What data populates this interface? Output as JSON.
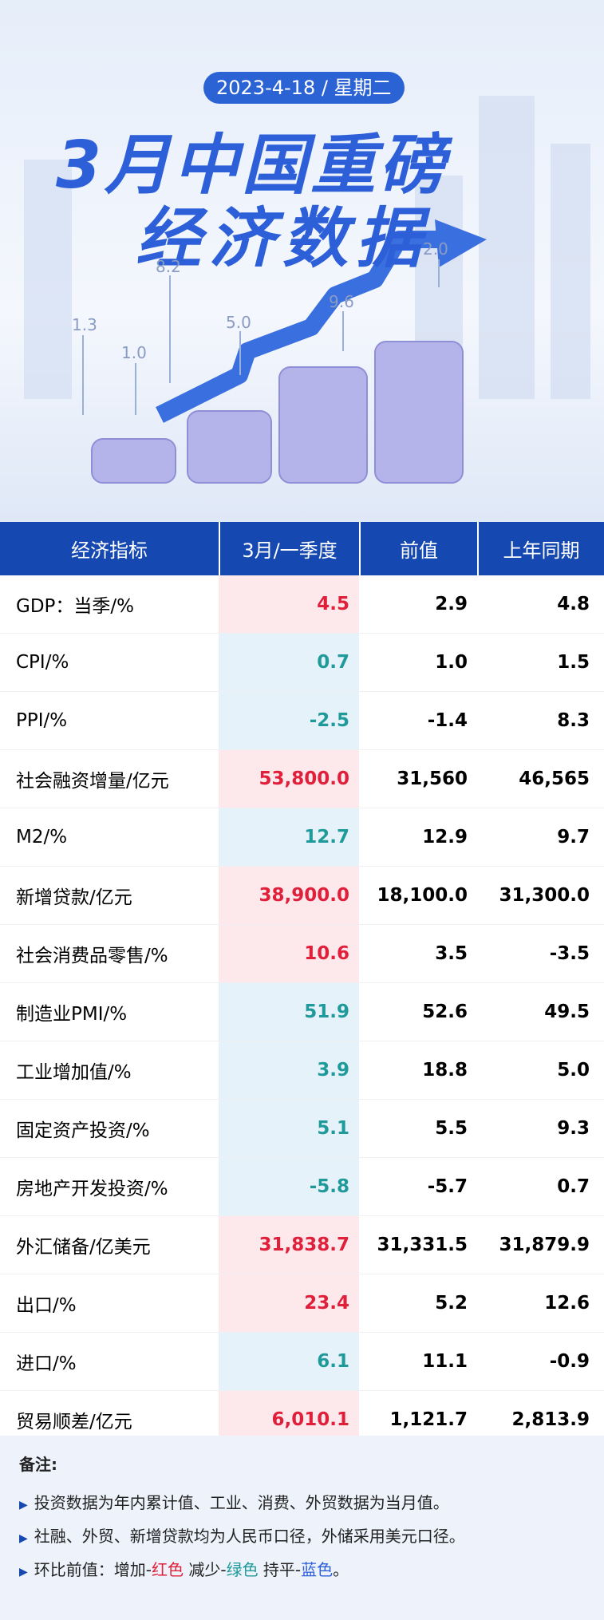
{
  "header": {
    "date": "2023-4-18 / 星期二",
    "title_line1": "3月中国重磅",
    "title_line2": "经济数据",
    "chart_labels": [
      "1.3",
      "1.0",
      "8.2",
      "5.0",
      "9.6",
      "2.0"
    ]
  },
  "table": {
    "columns": [
      "经济指标",
      "3月/一季度",
      "前值",
      "上年同期"
    ],
    "rows": [
      [
        "GDP：当季/%",
        "4.5",
        "2.9",
        "4.8"
      ],
      [
        "CPI/%",
        "0.7",
        "1.0",
        "1.5"
      ],
      [
        "PPI/%",
        "-2.5",
        "-1.4",
        "8.3"
      ],
      [
        "社会融资增量/亿元",
        "53,800.0",
        "31,560",
        "46,565"
      ],
      [
        "M2/%",
        "12.7",
        "12.9",
        "9.7"
      ],
      [
        "新增贷款/亿元",
        "38,900.0",
        "18,100.0",
        "31,300.0"
      ],
      [
        "社会消费品零售/%",
        "10.6",
        "3.5",
        "-3.5"
      ],
      [
        "制造业PMI/%",
        "51.9",
        "52.6",
        "49.5"
      ],
      [
        "工业增加值/%",
        "3.9",
        "18.8",
        "5.0"
      ],
      [
        "固定资产投资/%",
        "5.1",
        "5.5",
        "9.3"
      ],
      [
        "房地产开发投资/%",
        "-5.8",
        "-5.7",
        "0.7"
      ],
      [
        "外汇储备/亿美元",
        "31,838.7",
        "31,331.5",
        "31,879.9"
      ],
      [
        "出口/%",
        "23.4",
        "5.2",
        "12.6"
      ],
      [
        "进口/%",
        "6.1",
        "11.1",
        "-0.9"
      ],
      [
        "贸易顺差/亿元",
        "6,010.1",
        "1,121.7",
        "2,813.9"
      ]
    ],
    "value_colors": [
      "#e0203a",
      "#1e9a9a",
      "#1e9a9a",
      "#e0203a",
      "#1e9a9a",
      "#e0203a",
      "#e0203a",
      "#1e9a9a",
      "#1e9a9a",
      "#1e9a9a",
      "#1e9a9a",
      "#e0203a",
      "#e0203a",
      "#1e9a9a",
      "#e0203a"
    ]
  },
  "notes": {
    "title": "备注:",
    "items": [
      "投资数据为年内累计值、工业、消费、外贸数据为当月值。",
      "社融、外贸、新增贷款均为人民币口径，外储采用美元口径。"
    ],
    "legend": {
      "prefix": "环比前值：增加-",
      "up": "红色",
      "mid1": " 减少-",
      "down": "绿色",
      "mid2": " 持平-",
      "flat": "蓝色",
      "suffix": "。"
    }
  }
}
